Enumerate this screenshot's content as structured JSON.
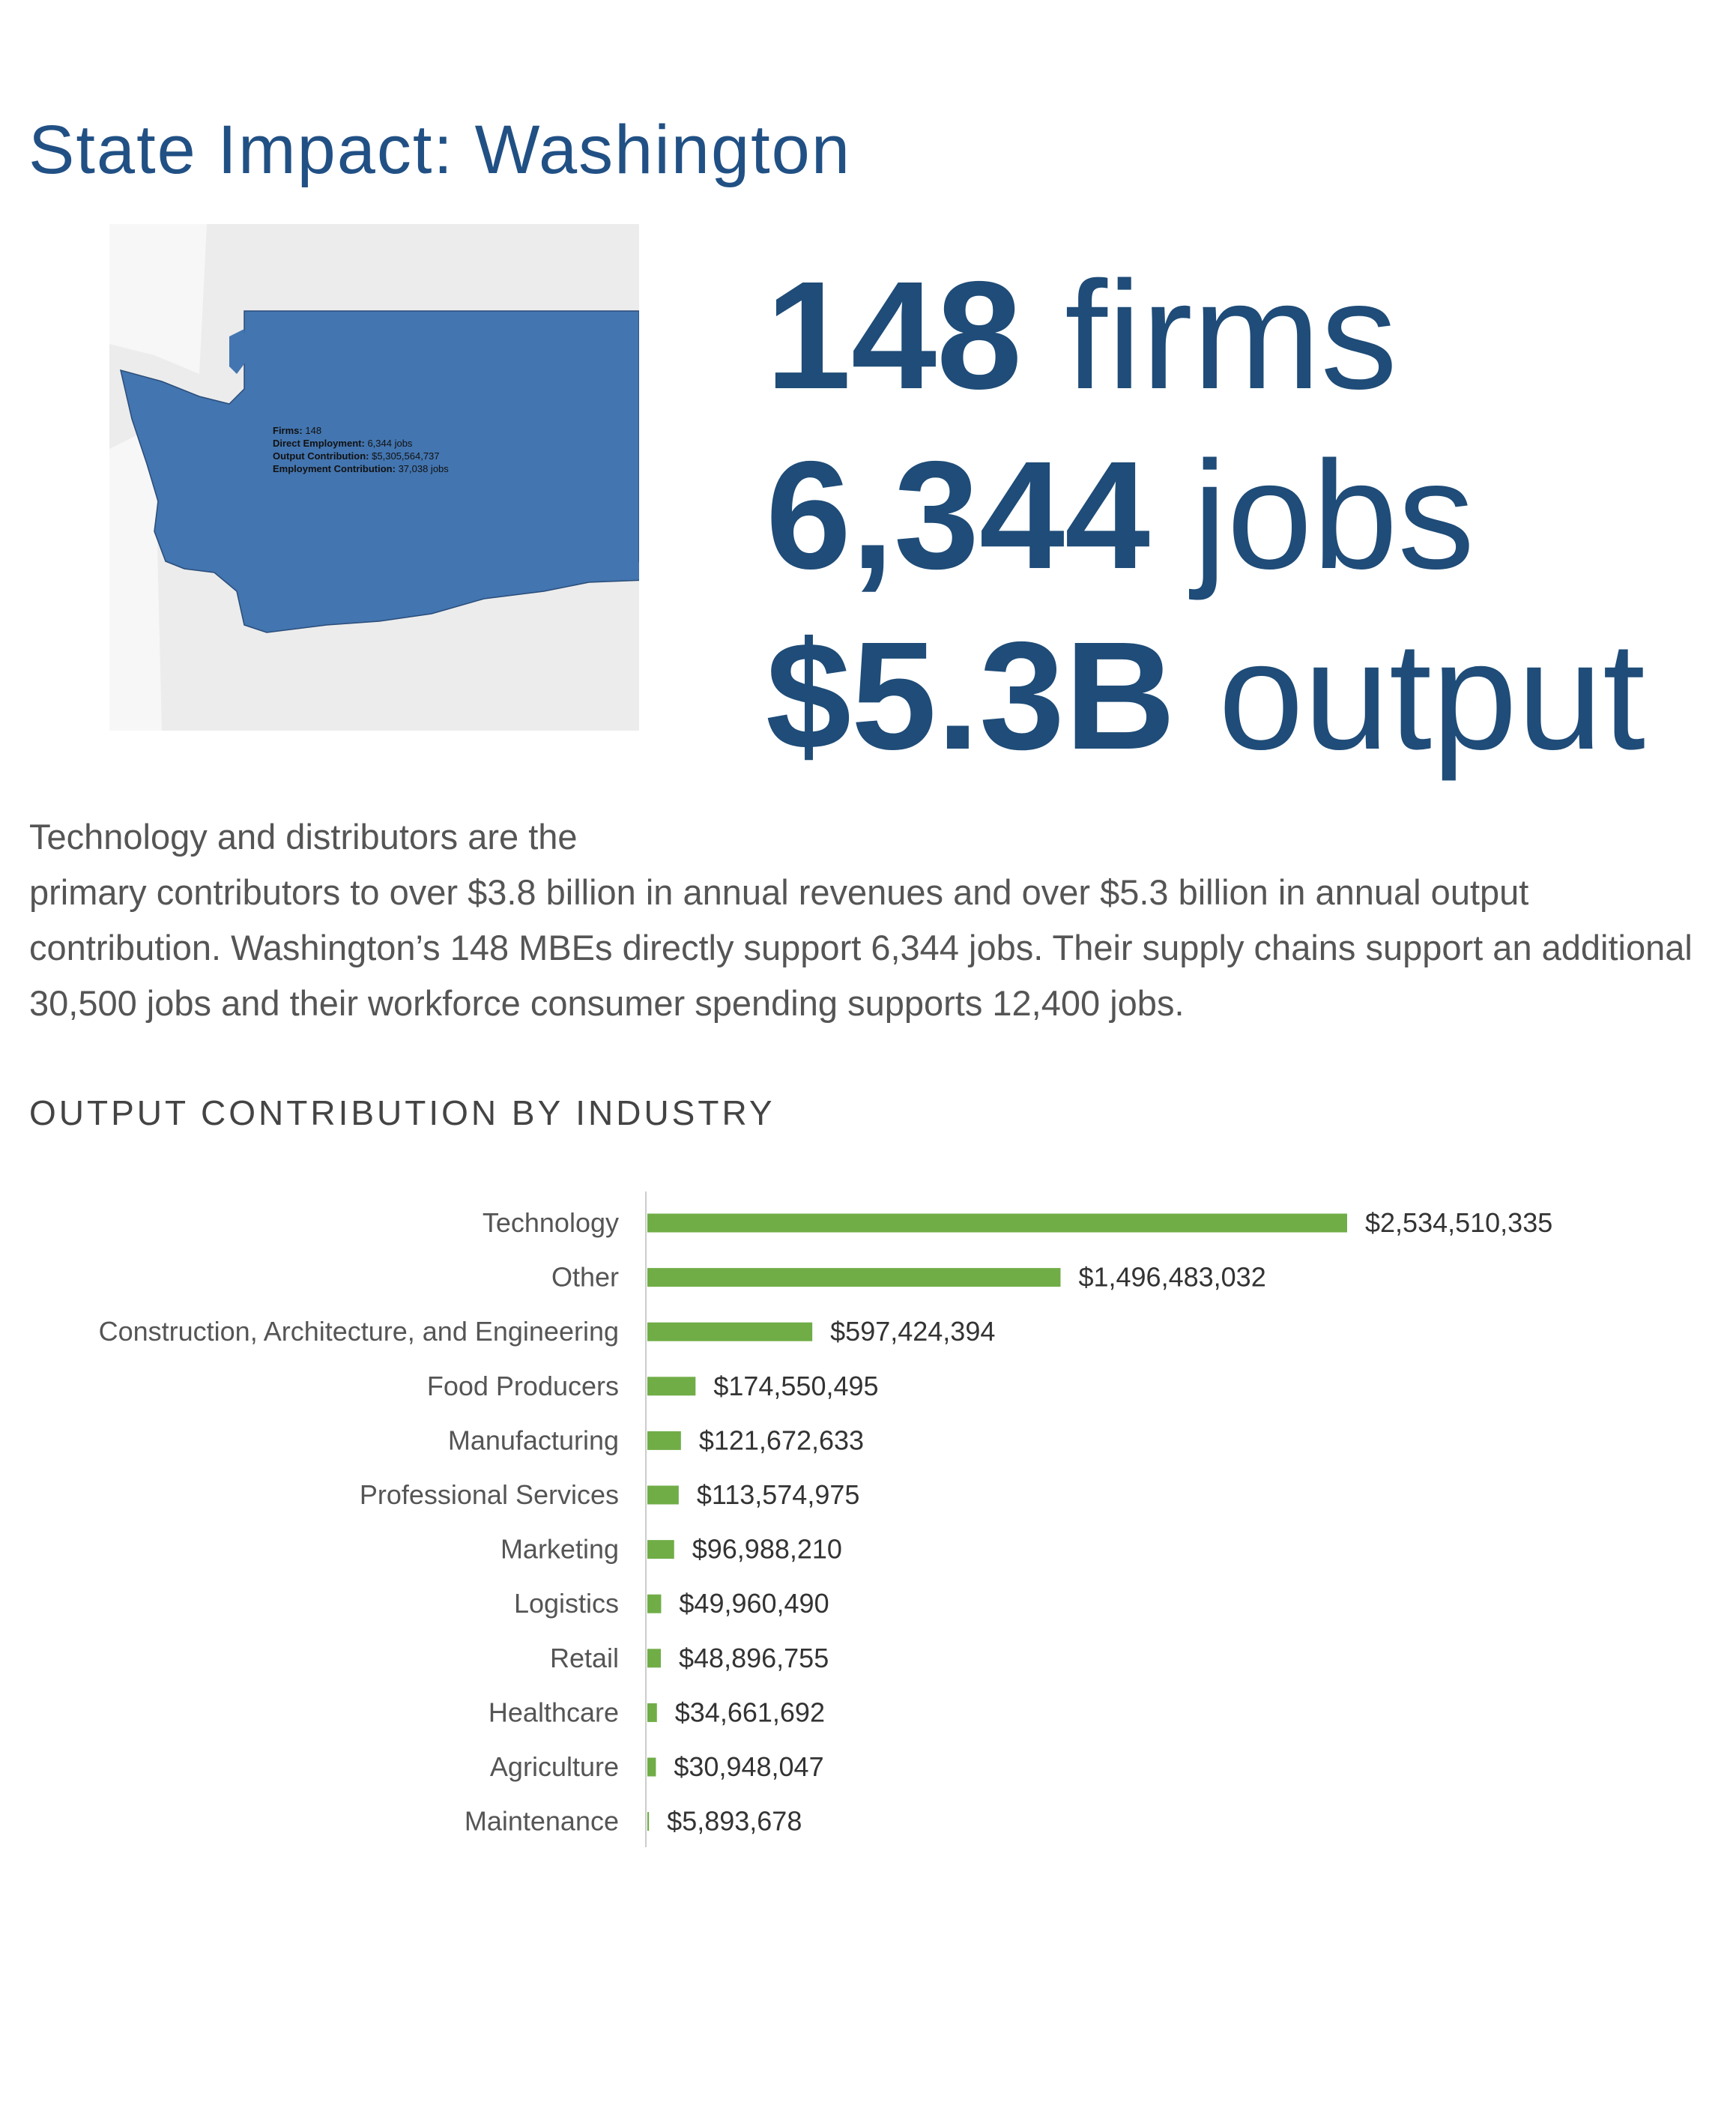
{
  "page_title": "State Impact: Washington",
  "headline": [
    {
      "value": "148",
      "unit": "firms"
    },
    {
      "value": "6,344",
      "unit": "jobs"
    },
    {
      "value": "$5.3B",
      "unit": "output"
    }
  ],
  "map": {
    "state_color": "#4375b0",
    "tooltip": [
      {
        "label": "Firms:",
        "value": "148"
      },
      {
        "label": "Direct Employment:",
        "value": "6,344 jobs"
      },
      {
        "label": "Output Contribution:",
        "value": "$5,305,564,737"
      },
      {
        "label": "Employment Contribution:",
        "value": "37,038 jobs"
      }
    ]
  },
  "paragraph": {
    "line1": "Technology and distributors are the",
    "rest": "primary contributors to over $3.8 billion in annual revenues and over $5.3 billion in annual output contribution. Washington’s 148 MBEs directly support 6,344 jobs. Their supply chains support an additional 30,500 jobs and their workforce consumer spending supports 12,400 jobs."
  },
  "section_title": "OUTPUT CONTRIBUTION BY INDUSTRY",
  "chart_data": {
    "type": "bar",
    "orientation": "horizontal",
    "bar_color": "#70ad47",
    "grid": false,
    "categories": [
      "Technology",
      "Other",
      "Construction, Architecture, and Engineering",
      "Food Producers",
      "Manufacturing",
      "Professional Services",
      "Marketing",
      "Logistics",
      "Retail",
      "Healthcare",
      "Agriculture",
      "Maintenance"
    ],
    "values": [
      2534510335,
      1496483032,
      597424394,
      174550495,
      121672633,
      113574975,
      96988210,
      49960490,
      48896755,
      34661692,
      30948047,
      5893678
    ],
    "labels": [
      "$2,534,510,335",
      "$1,496,483,032",
      "$597,424,394",
      "$174,550,495",
      "$121,672,633",
      "$113,574,975",
      "$96,988,210",
      "$49,960,490",
      "$48,896,755",
      "$34,661,692",
      "$30,948,047",
      "$5,893,678"
    ]
  }
}
